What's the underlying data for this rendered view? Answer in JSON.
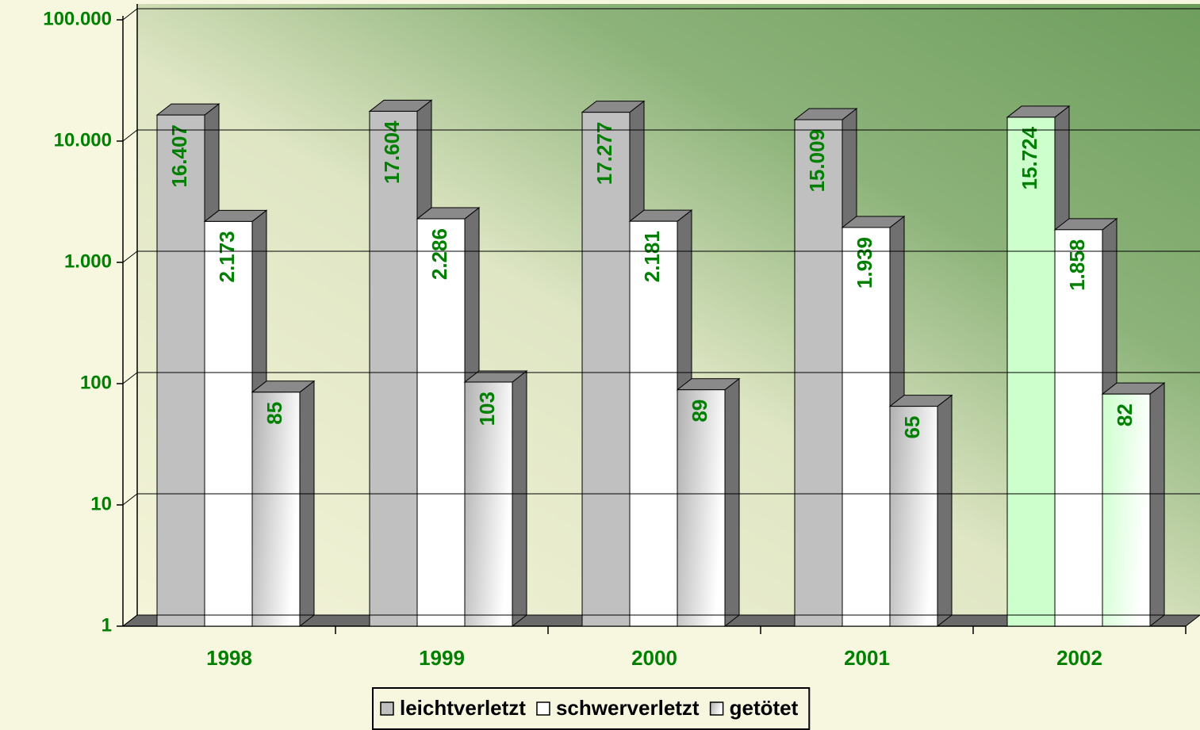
{
  "chart_data": {
    "type": "bar3d",
    "categories": [
      "1998",
      "1999",
      "2000",
      "2001",
      "2002"
    ],
    "series": [
      {
        "name": "leichtverletzt",
        "color": "#c0c0c0",
        "point_colors": [
          "#c0c0c0",
          "#c0c0c0",
          "#c0c0c0",
          "#c0c0c0",
          "#ccffcc"
        ],
        "values": [
          16407,
          17604,
          17277,
          15009,
          15724
        ],
        "value_labels": [
          "16.407",
          "17.604",
          "17.277",
          "15.009",
          "15.724"
        ]
      },
      {
        "name": "schwerverletzt",
        "color": "#ffffff",
        "point_colors": [
          "#ffffff",
          "#ffffff",
          "#ffffff",
          "#ffffff",
          "#ffffff"
        ],
        "values": [
          2173,
          2286,
          2181,
          1939,
          1858
        ],
        "value_labels": [
          "2.173",
          "2.286",
          "2.181",
          "1.939",
          "1.858"
        ]
      },
      {
        "name": "getötet",
        "color": "#c8c8c8",
        "point_colors": [
          "#b0b0b0",
          "#b0b0b0",
          "#b0b0b0",
          "#b0b0b0",
          "#ccffcc"
        ],
        "values": [
          85,
          103,
          89,
          65,
          82
        ],
        "value_labels": [
          "85",
          "103",
          "89",
          "65",
          "82"
        ]
      }
    ],
    "log_scale": true,
    "ylim": [
      1,
      100000
    ],
    "yticks": [
      1,
      10,
      100,
      {
        "value": 1000,
        "label": "1.000"
      },
      {
        "value": 10000,
        "label": "10.000"
      },
      {
        "value": 100000,
        "label": "100.000"
      }
    ],
    "grid": true,
    "legend": "bottom"
  }
}
